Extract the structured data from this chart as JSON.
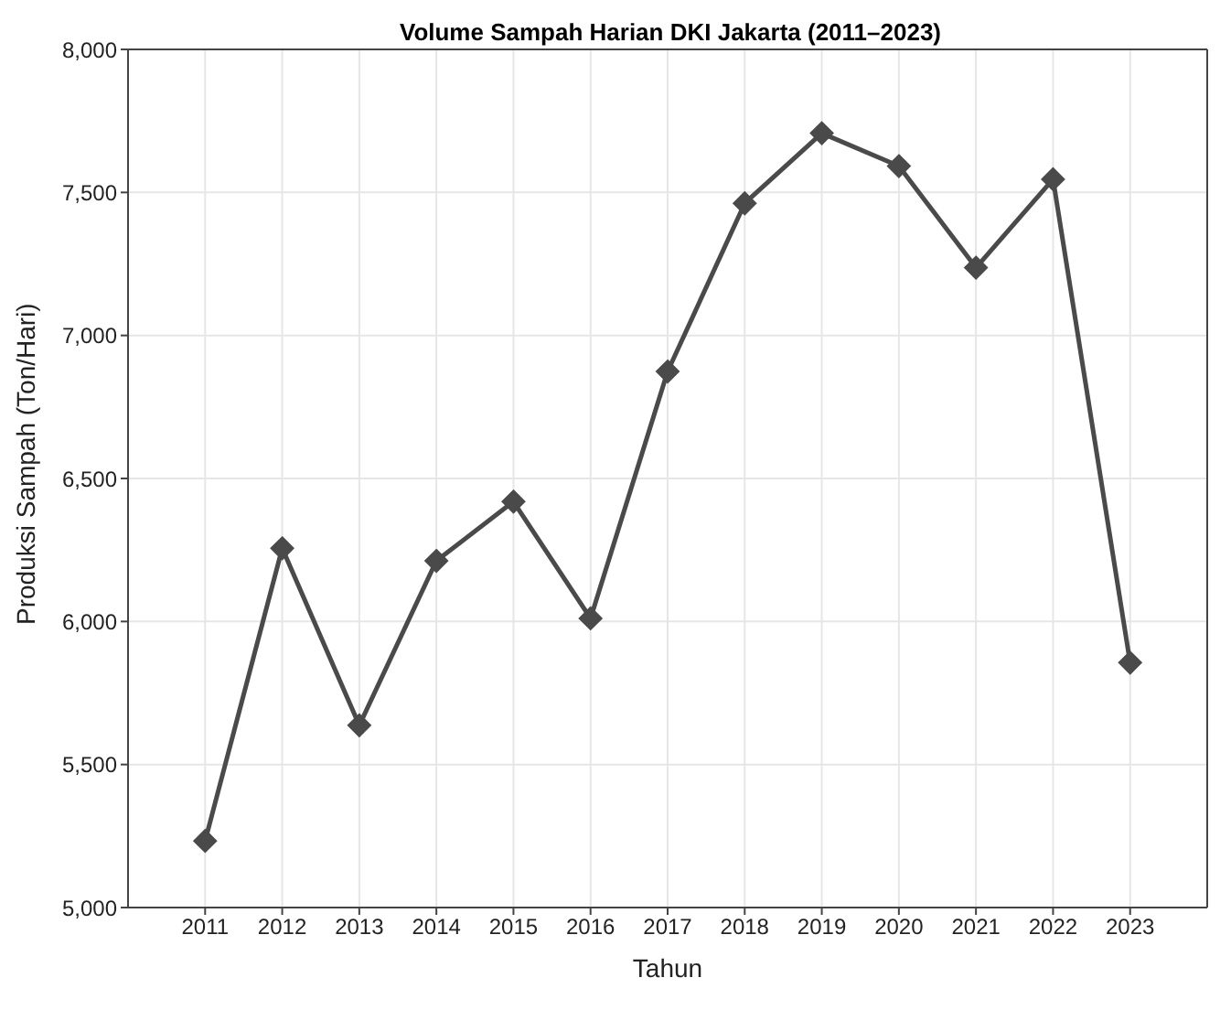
{
  "chart_data": {
    "type": "line",
    "title": "Volume Sampah Harian DKI Jakarta (2011–2023)",
    "xlabel": "Tahun",
    "ylabel": "Produksi Sampah (Ton/Hari)",
    "x": [
      2011,
      2012,
      2013,
      2014,
      2015,
      2016,
      2017,
      2018,
      2019,
      2020,
      2021,
      2022,
      2023
    ],
    "series": [
      {
        "color": "#4a4a4a",
        "values": [
          5233,
          6256,
          5637,
          6212,
          6419,
          6011,
          6874,
          7462,
          7707,
          7592,
          7237,
          7546,
          5856
        ]
      }
    ],
    "xlim": [
      2010,
      2024
    ],
    "xticks": [
      2011,
      2012,
      2013,
      2014,
      2015,
      2016,
      2017,
      2018,
      2019,
      2020,
      2021,
      2022,
      2023
    ],
    "ylim": [
      5000,
      8000
    ],
    "yticks": [
      {
        "value": 5000,
        "label": "5,000"
      },
      {
        "value": 5500,
        "label": "5,500"
      },
      {
        "value": 6000,
        "label": "6,000"
      },
      {
        "value": 6500,
        "label": "6,500"
      },
      {
        "value": 7000,
        "label": "7,000"
      },
      {
        "value": 7500,
        "label": "7,500"
      },
      {
        "value": 8000,
        "label": "8,000"
      }
    ],
    "grid": true,
    "marker": "diamond",
    "line_style": "solid",
    "legend": false
  }
}
